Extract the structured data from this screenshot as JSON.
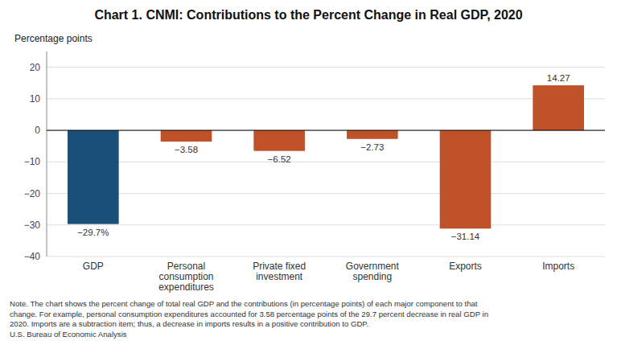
{
  "chart_data": {
    "type": "bar",
    "title": "Chart 1. CNMI: Contributions to the Percent Change in Real GDP, 2020",
    "ylabel": "Percentage points",
    "categories": [
      "GDP",
      "Personal\nconsumption\nexpenditures",
      "Private fixed\ninvestment",
      "Government\nspending",
      "Exports",
      "Imports"
    ],
    "values": [
      -29.7,
      -3.58,
      -6.52,
      -2.73,
      -31.14,
      14.27
    ],
    "value_labels": [
      "−29.7%",
      "−3.58",
      "−6.52",
      "−2.73",
      "−31.14",
      "14.27"
    ],
    "data_labels": true,
    "colors": [
      "#1a4f7a",
      "#c0522a",
      "#c0522a",
      "#c0522a",
      "#c0522a",
      "#c0522a"
    ],
    "ylim": [
      -40,
      25
    ],
    "yticks": [
      {
        "value": -40,
        "label": "−40"
      },
      {
        "value": -30,
        "label": "−30"
      },
      {
        "value": -20,
        "label": "−20"
      },
      {
        "value": -10,
        "label": "−10"
      },
      0,
      10,
      20
    ],
    "grid": true,
    "annotations": [
      "Note. The chart shows the percent change of total real GDP and the contributions (in percentage points) of each major component to that\nchange. For example, personal consumption expenditures accounted for 3.58 percentage points of the 29.7 percent decrease in real GDP in\n2020. Imports are a subtraction item; thus, a decrease in imports results in a positive contribution to GDP.\nU.S. Bureau of Economic Analysis"
    ]
  }
}
